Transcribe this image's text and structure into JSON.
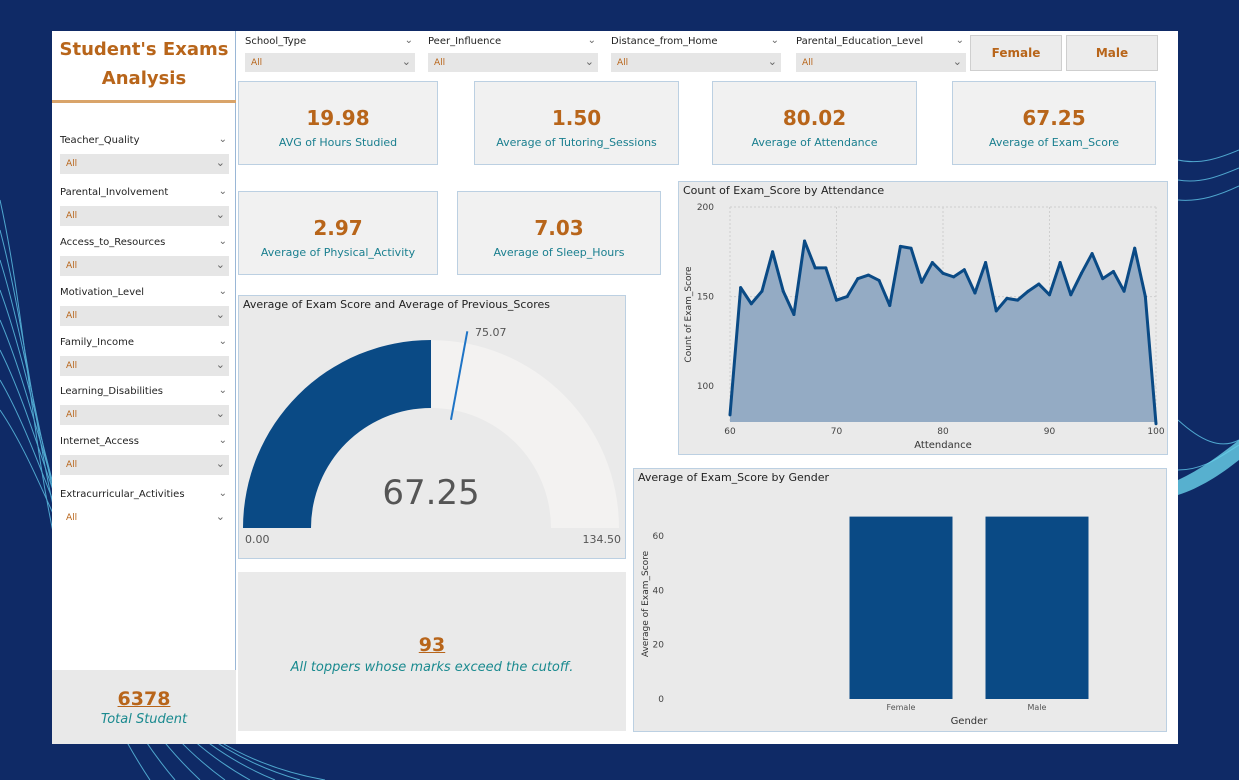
{
  "dashboard": {
    "title": "Student's Exams Analysis",
    "total_students": "6378",
    "total_label": "Total Student"
  },
  "left_slicers": [
    {
      "label": "Teacher_Quality",
      "value": "All"
    },
    {
      "label": "Parental_Involvement",
      "value": "All"
    },
    {
      "label": "Access_to_Resources",
      "value": "All"
    },
    {
      "label": "Motivation_Level",
      "value": "All"
    },
    {
      "label": "Family_Income",
      "value": "All"
    },
    {
      "label": "Learning_Disabilities",
      "value": "All"
    },
    {
      "label": "Internet_Access",
      "value": "All"
    },
    {
      "label": "Extracurricular_Activities",
      "value": "All"
    }
  ],
  "top_slicers": [
    {
      "label": "School_Type",
      "value": "All"
    },
    {
      "label": "Peer_Influence",
      "value": "All"
    },
    {
      "label": "Distance_from_Home",
      "value": "All"
    },
    {
      "label": "Parental_Education_Level",
      "value": "All"
    }
  ],
  "gender_buttons": {
    "female": "Female",
    "male": "Male"
  },
  "cards": [
    {
      "value": "19.98",
      "label": "AVG of Hours Studied"
    },
    {
      "value": "1.50",
      "label": "Average of Tutoring_Sessions"
    },
    {
      "value": "80.02",
      "label": "Average of Attendance"
    },
    {
      "value": "67.25",
      "label": "Average of Exam_Score"
    },
    {
      "value": "2.97",
      "label": "Average of Physical_Activity"
    },
    {
      "value": "7.03",
      "label": "Average of Sleep_Hours"
    }
  ],
  "toppers": {
    "count": "93",
    "text": "All toppers whose marks exceed the cutoff."
  },
  "colors": {
    "accent": "#b8651a",
    "teal": "#1a7f8f",
    "navy": "#0a4a85",
    "area_fill": "#94abc4"
  },
  "chart_data": [
    {
      "type": "gauge",
      "title": "Average of Exam Score and Average of Previous_Scores",
      "value": 67.25,
      "value_label": "67.25",
      "min": 0,
      "min_label": "0.00",
      "max": 134.5,
      "max_label": "134.50",
      "target": 75.07,
      "target_label": "75.07"
    },
    {
      "type": "area",
      "title": "Count of Exam_Score by Attendance",
      "xlabel": "Attendance",
      "ylabel": "Count of Exam_Score",
      "xlim": [
        60,
        100
      ],
      "ylim": [
        80,
        200
      ],
      "xticks": [
        60,
        70,
        80,
        90,
        100
      ],
      "yticks": [
        100,
        150,
        200
      ],
      "grid": true,
      "x": [
        60,
        61,
        62,
        63,
        64,
        65,
        66,
        67,
        68,
        69,
        70,
        71,
        72,
        73,
        74,
        75,
        76,
        77,
        78,
        79,
        80,
        81,
        82,
        83,
        84,
        85,
        86,
        87,
        88,
        89,
        90,
        91,
        92,
        93,
        94,
        95,
        96,
        97,
        98,
        99,
        100
      ],
      "values": [
        84,
        155,
        146,
        153,
        175,
        153,
        140,
        181,
        166,
        166,
        148,
        150,
        160,
        162,
        159,
        145,
        178,
        177,
        158,
        169,
        163,
        161,
        165,
        152,
        169,
        142,
        149,
        148,
        153,
        157,
        151,
        169,
        151,
        163,
        174,
        160,
        164,
        153,
        177,
        150,
        79
      ]
    },
    {
      "type": "bar",
      "title": "Average of Exam_Score by Gender",
      "xlabel": "Gender",
      "ylabel": "Average of Exam_Score",
      "categories": [
        "Female",
        "Male"
      ],
      "values": [
        67.2,
        67.2
      ],
      "yticks": [
        0,
        20,
        40,
        60
      ],
      "ylim": [
        0,
        70
      ]
    }
  ]
}
